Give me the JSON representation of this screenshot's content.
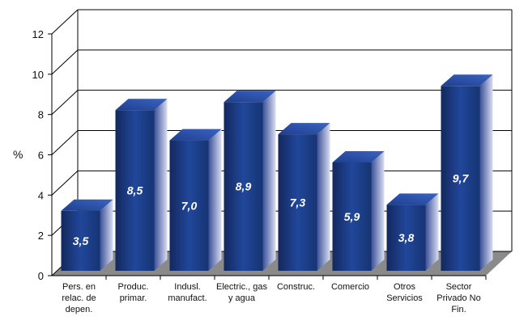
{
  "chart_data": {
    "type": "bar",
    "style": "3d",
    "ylabel": "%",
    "ylim": [
      0,
      12
    ],
    "yticks": [
      "0",
      "2",
      "4",
      "6",
      "8",
      "10",
      "12"
    ],
    "grid": true,
    "categories": [
      [
        "Pers. en",
        "relac. de",
        "depen."
      ],
      [
        "Produc.",
        "primar."
      ],
      [
        "Indusl.",
        "manufact."
      ],
      [
        "Electric., gas",
        "y agua"
      ],
      [
        "Construc."
      ],
      [
        "Comercio"
      ],
      [
        "Otros",
        "Servicios"
      ],
      [
        "Sector",
        "Privado No",
        "Fin."
      ]
    ],
    "values": [
      3.5,
      8.5,
      7.0,
      8.9,
      7.3,
      5.9,
      3.8,
      9.7
    ],
    "data_labels": [
      "3,5",
      "8,5",
      "7,0",
      "8,9",
      "7,3",
      "5,9",
      "3,8",
      "9,7"
    ],
    "colors": {
      "bar_front": "#1d3f8c",
      "bar_side": "#b8c3e6",
      "bar_top": "#2c56b3",
      "floor": "#8a8a8a"
    }
  }
}
